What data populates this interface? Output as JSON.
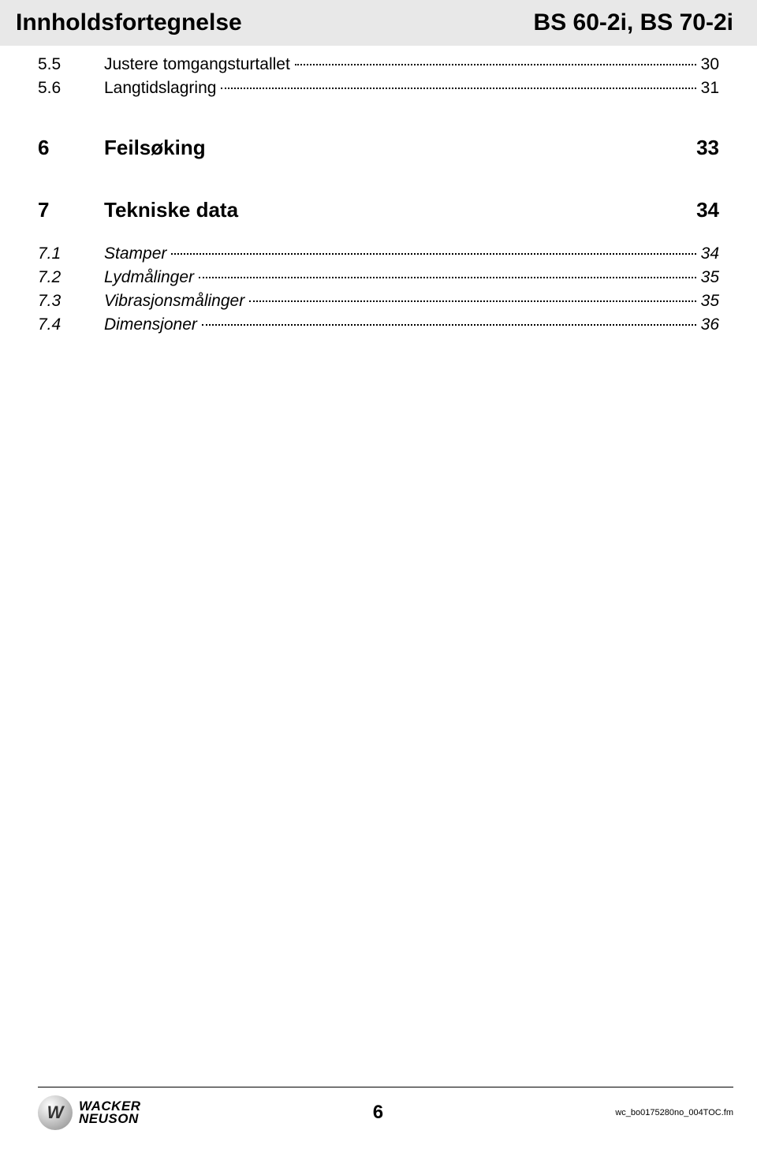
{
  "header": {
    "left": "Innholdsfortegnelse",
    "right": "BS 60-2i, BS 70-2i"
  },
  "toc_pre": [
    {
      "num": "5.5",
      "label": "Justere tomgangsturtallet",
      "page": "30"
    },
    {
      "num": "5.6",
      "label": "Langtidslagring",
      "page": "31"
    }
  ],
  "sections": [
    {
      "num": "6",
      "title": "Feilsøking",
      "page": "33",
      "items": []
    },
    {
      "num": "7",
      "title": "Tekniske data",
      "page": "34",
      "items": [
        {
          "num": "7.1",
          "label": "Stamper",
          "page": "34"
        },
        {
          "num": "7.2",
          "label": "Lydmålinger",
          "page": "35"
        },
        {
          "num": "7.3",
          "label": "Vibrasjonsmålinger",
          "page": "35"
        },
        {
          "num": "7.4",
          "label": "Dimensjoner",
          "page": "36"
        }
      ]
    }
  ],
  "footer": {
    "logo_line1": "WACKER",
    "logo_line2": "NEUSON",
    "page_number": "6",
    "filename": "wc_bo0175280no_004TOC.fm"
  },
  "colors": {
    "header_bg": "#e8e8e8",
    "text": "#000000",
    "page_bg": "#ffffff"
  }
}
